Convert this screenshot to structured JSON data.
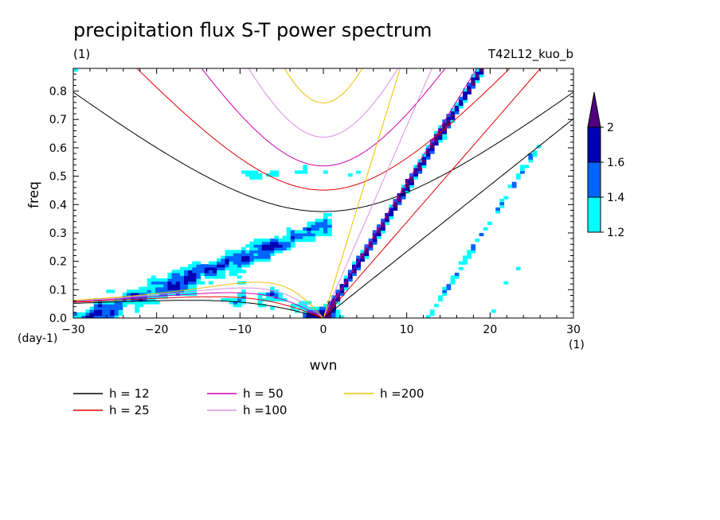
{
  "chart_data": {
    "type": "heatmap",
    "title": "precipitation flux S-T power spectrum",
    "subtitle_left": "(1)",
    "subtitle_right": "T42L12_kuo_b",
    "xlabel": "wvn",
    "ylabel": "freq",
    "x_unit": "(1)",
    "y_unit": "(day-1)",
    "xlim": [
      -30,
      30
    ],
    "ylim": [
      0.0,
      0.88
    ],
    "xticks": [
      "−30",
      "−20",
      "−10",
      "0",
      "10",
      "20",
      "30"
    ],
    "xtick_values": [
      -30,
      -20,
      -10,
      0,
      10,
      20,
      30
    ],
    "yticks": [
      "0.0",
      "0.1",
      "0.2",
      "0.3",
      "0.4",
      "0.5",
      "0.6",
      "0.7",
      "0.8"
    ],
    "ytick_values": [
      0.0,
      0.1,
      0.2,
      0.3,
      0.4,
      0.5,
      0.6,
      0.7,
      0.8
    ],
    "colorbar": {
      "levels": [
        1.2,
        1.4,
        1.6,
        2.0
      ],
      "labels": [
        "1.2",
        "1.4",
        "1.6",
        "2"
      ],
      "colors": [
        "#00ffff",
        "#0064ff",
        "#0000b4",
        "#50007f"
      ],
      "extend": "max"
    },
    "dispersion_curves": [
      {
        "name": "h = 12",
        "h": 12,
        "color": "#000000"
      },
      {
        "name": "h = 25",
        "h": 25,
        "color": "#e00000"
      },
      {
        "name": "h = 50",
        "h": 50,
        "color": "#d000b0"
      },
      {
        "name": "h =100",
        "h": 100,
        "color": "#d890e0"
      },
      {
        "name": "h =200",
        "h": 200,
        "color": "#f0c000"
      }
    ],
    "kelvin_ridge": {
      "description": "strong power along Kelvin wave band",
      "k_range": [
        1,
        19
      ],
      "freq_range": [
        0.02,
        0.88
      ]
    },
    "low_freq_band": {
      "description": "power along westward low-frequency band",
      "k_range": [
        -30,
        0
      ],
      "freq_range": [
        0.0,
        0.3
      ]
    }
  }
}
